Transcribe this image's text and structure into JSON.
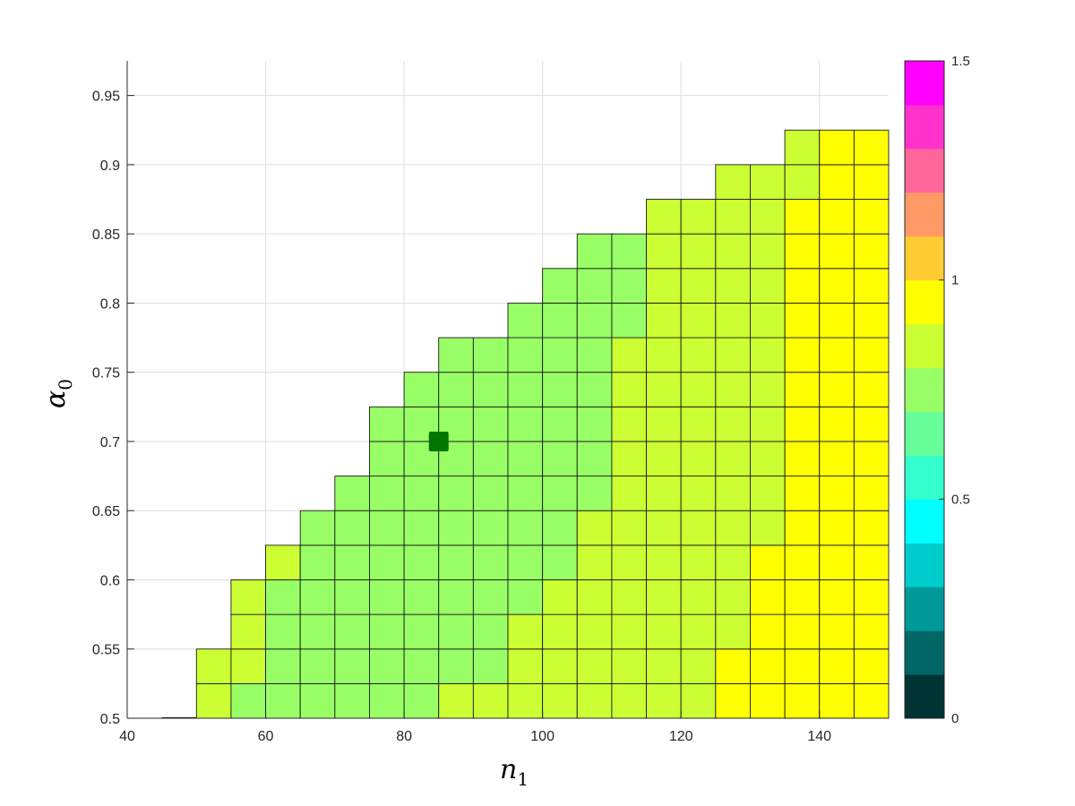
{
  "chart_data": {
    "type": "heatmap",
    "xlabel_main": "n",
    "xlabel_sub": "1",
    "ylabel_main": "α",
    "ylabel_sub": "0",
    "xlim": [
      40,
      150
    ],
    "ylim": [
      0.5,
      0.975
    ],
    "x_ticks": [
      40,
      60,
      80,
      100,
      120,
      140
    ],
    "y_ticks": [
      0.5,
      0.55,
      0.6,
      0.65,
      0.7,
      0.75,
      0.8,
      0.85,
      0.9,
      0.95
    ],
    "x_tick_labels": [
      "40",
      "60",
      "80",
      "100",
      "120",
      "140"
    ],
    "y_tick_labels": [
      "0.5",
      "0.55",
      "0.6",
      "0.65",
      "0.7",
      "0.75",
      "0.8",
      "0.85",
      "0.9",
      "0.95"
    ],
    "grid": true,
    "cell_width": 5,
    "cell_height": 0.025,
    "colorbar": {
      "range": [
        0,
        1.5
      ],
      "ticks": [
        0,
        0.5,
        1,
        1.5
      ],
      "tick_labels": [
        "0",
        "0.5",
        "1",
        "1.5"
      ],
      "levels": [
        "#003333",
        "#006666",
        "#009999",
        "#00CCCC",
        "#00FFFF",
        "#33FFCC",
        "#66FF99",
        "#99FF66",
        "#CCFF33",
        "#FFFF00",
        "#FFCC33",
        "#FF9966",
        "#FF6699",
        "#FF33CC",
        "#FF00FF"
      ]
    },
    "marker": {
      "x": 85,
      "y": 0.7,
      "color": "#007700"
    },
    "columns": [
      {
        "x": 50,
        "ymax": 0.55,
        "values": [
          0.85,
          0.85
        ]
      },
      {
        "x": 55,
        "ymax": 0.6,
        "values": [
          0.75,
          0.85,
          0.85,
          0.85
        ]
      },
      {
        "x": 60,
        "ymax": 0.625,
        "values": [
          0.75,
          0.75,
          0.75,
          0.75,
          0.85
        ]
      },
      {
        "x": 65,
        "ymax": 0.65,
        "values": [
          0.75,
          0.75,
          0.75,
          0.75,
          0.75,
          0.75
        ]
      },
      {
        "x": 70,
        "ymax": 0.675,
        "values": [
          0.75,
          0.75,
          0.75,
          0.75,
          0.75,
          0.75,
          0.75
        ]
      },
      {
        "x": 75,
        "ymax": 0.725,
        "values": [
          0.75,
          0.75,
          0.75,
          0.75,
          0.75,
          0.75,
          0.75,
          0.75,
          0.75
        ]
      },
      {
        "x": 80,
        "ymax": 0.75,
        "values": [
          0.75,
          0.75,
          0.75,
          0.75,
          0.75,
          0.75,
          0.75,
          0.75,
          0.75,
          0.75
        ]
      },
      {
        "x": 85,
        "ymax": 0.775,
        "values": [
          0.85,
          0.75,
          0.75,
          0.75,
          0.75,
          0.75,
          0.75,
          0.75,
          0.75,
          0.75,
          0.75
        ]
      },
      {
        "x": 90,
        "ymax": 0.775,
        "values": [
          0.85,
          0.75,
          0.75,
          0.75,
          0.75,
          0.75,
          0.75,
          0.75,
          0.75,
          0.75,
          0.75
        ]
      },
      {
        "x": 95,
        "ymax": 0.8,
        "values": [
          0.85,
          0.85,
          0.85,
          0.75,
          0.75,
          0.75,
          0.75,
          0.75,
          0.75,
          0.75,
          0.75,
          0.75
        ]
      },
      {
        "x": 100,
        "ymax": 0.825,
        "values": [
          0.85,
          0.85,
          0.85,
          0.85,
          0.75,
          0.75,
          0.75,
          0.75,
          0.75,
          0.75,
          0.75,
          0.75,
          0.75
        ]
      },
      {
        "x": 105,
        "ymax": 0.85,
        "values": [
          0.85,
          0.85,
          0.85,
          0.85,
          0.85,
          0.85,
          0.75,
          0.75,
          0.75,
          0.75,
          0.75,
          0.75,
          0.75,
          0.75
        ]
      },
      {
        "x": 110,
        "ymax": 0.85,
        "values": [
          0.85,
          0.85,
          0.85,
          0.85,
          0.85,
          0.85,
          0.85,
          0.85,
          0.85,
          0.85,
          0.85,
          0.75,
          0.75,
          0.75
        ]
      },
      {
        "x": 115,
        "ymax": 0.875,
        "values": [
          0.85,
          0.85,
          0.85,
          0.85,
          0.85,
          0.85,
          0.85,
          0.85,
          0.85,
          0.85,
          0.85,
          0.85,
          0.85,
          0.85,
          0.85
        ]
      },
      {
        "x": 120,
        "ymax": 0.875,
        "values": [
          0.85,
          0.85,
          0.85,
          0.85,
          0.85,
          0.85,
          0.85,
          0.85,
          0.85,
          0.85,
          0.85,
          0.85,
          0.85,
          0.85,
          0.85
        ]
      },
      {
        "x": 125,
        "ymax": 0.9,
        "values": [
          0.95,
          0.95,
          0.85,
          0.85,
          0.85,
          0.85,
          0.85,
          0.85,
          0.85,
          0.85,
          0.85,
          0.85,
          0.85,
          0.85,
          0.85,
          0.85
        ]
      },
      {
        "x": 130,
        "ymax": 0.9,
        "values": [
          0.95,
          0.95,
          0.95,
          0.95,
          0.95,
          0.85,
          0.85,
          0.85,
          0.85,
          0.85,
          0.85,
          0.85,
          0.85,
          0.85,
          0.85,
          0.85
        ]
      },
      {
        "x": 135,
        "ymax": 0.925,
        "values": [
          0.95,
          0.95,
          0.95,
          0.95,
          0.95,
          0.95,
          0.95,
          0.95,
          0.95,
          0.95,
          0.95,
          0.95,
          0.95,
          0.95,
          0.95,
          0.85,
          0.85
        ]
      },
      {
        "x": 140,
        "ymax": 0.925,
        "values": [
          0.95,
          0.95,
          0.95,
          0.95,
          0.95,
          0.95,
          0.95,
          0.95,
          0.95,
          0.95,
          0.95,
          0.95,
          0.95,
          0.95,
          0.95,
          0.95,
          0.95
        ]
      },
      {
        "x": 145,
        "ymax": 0.925,
        "values": [
          0.95,
          0.95,
          0.95,
          0.95,
          0.95,
          0.95,
          0.95,
          0.95,
          0.95,
          0.95,
          0.95,
          0.95,
          0.95,
          0.95,
          0.95,
          0.95,
          0.95
        ]
      }
    ]
  }
}
